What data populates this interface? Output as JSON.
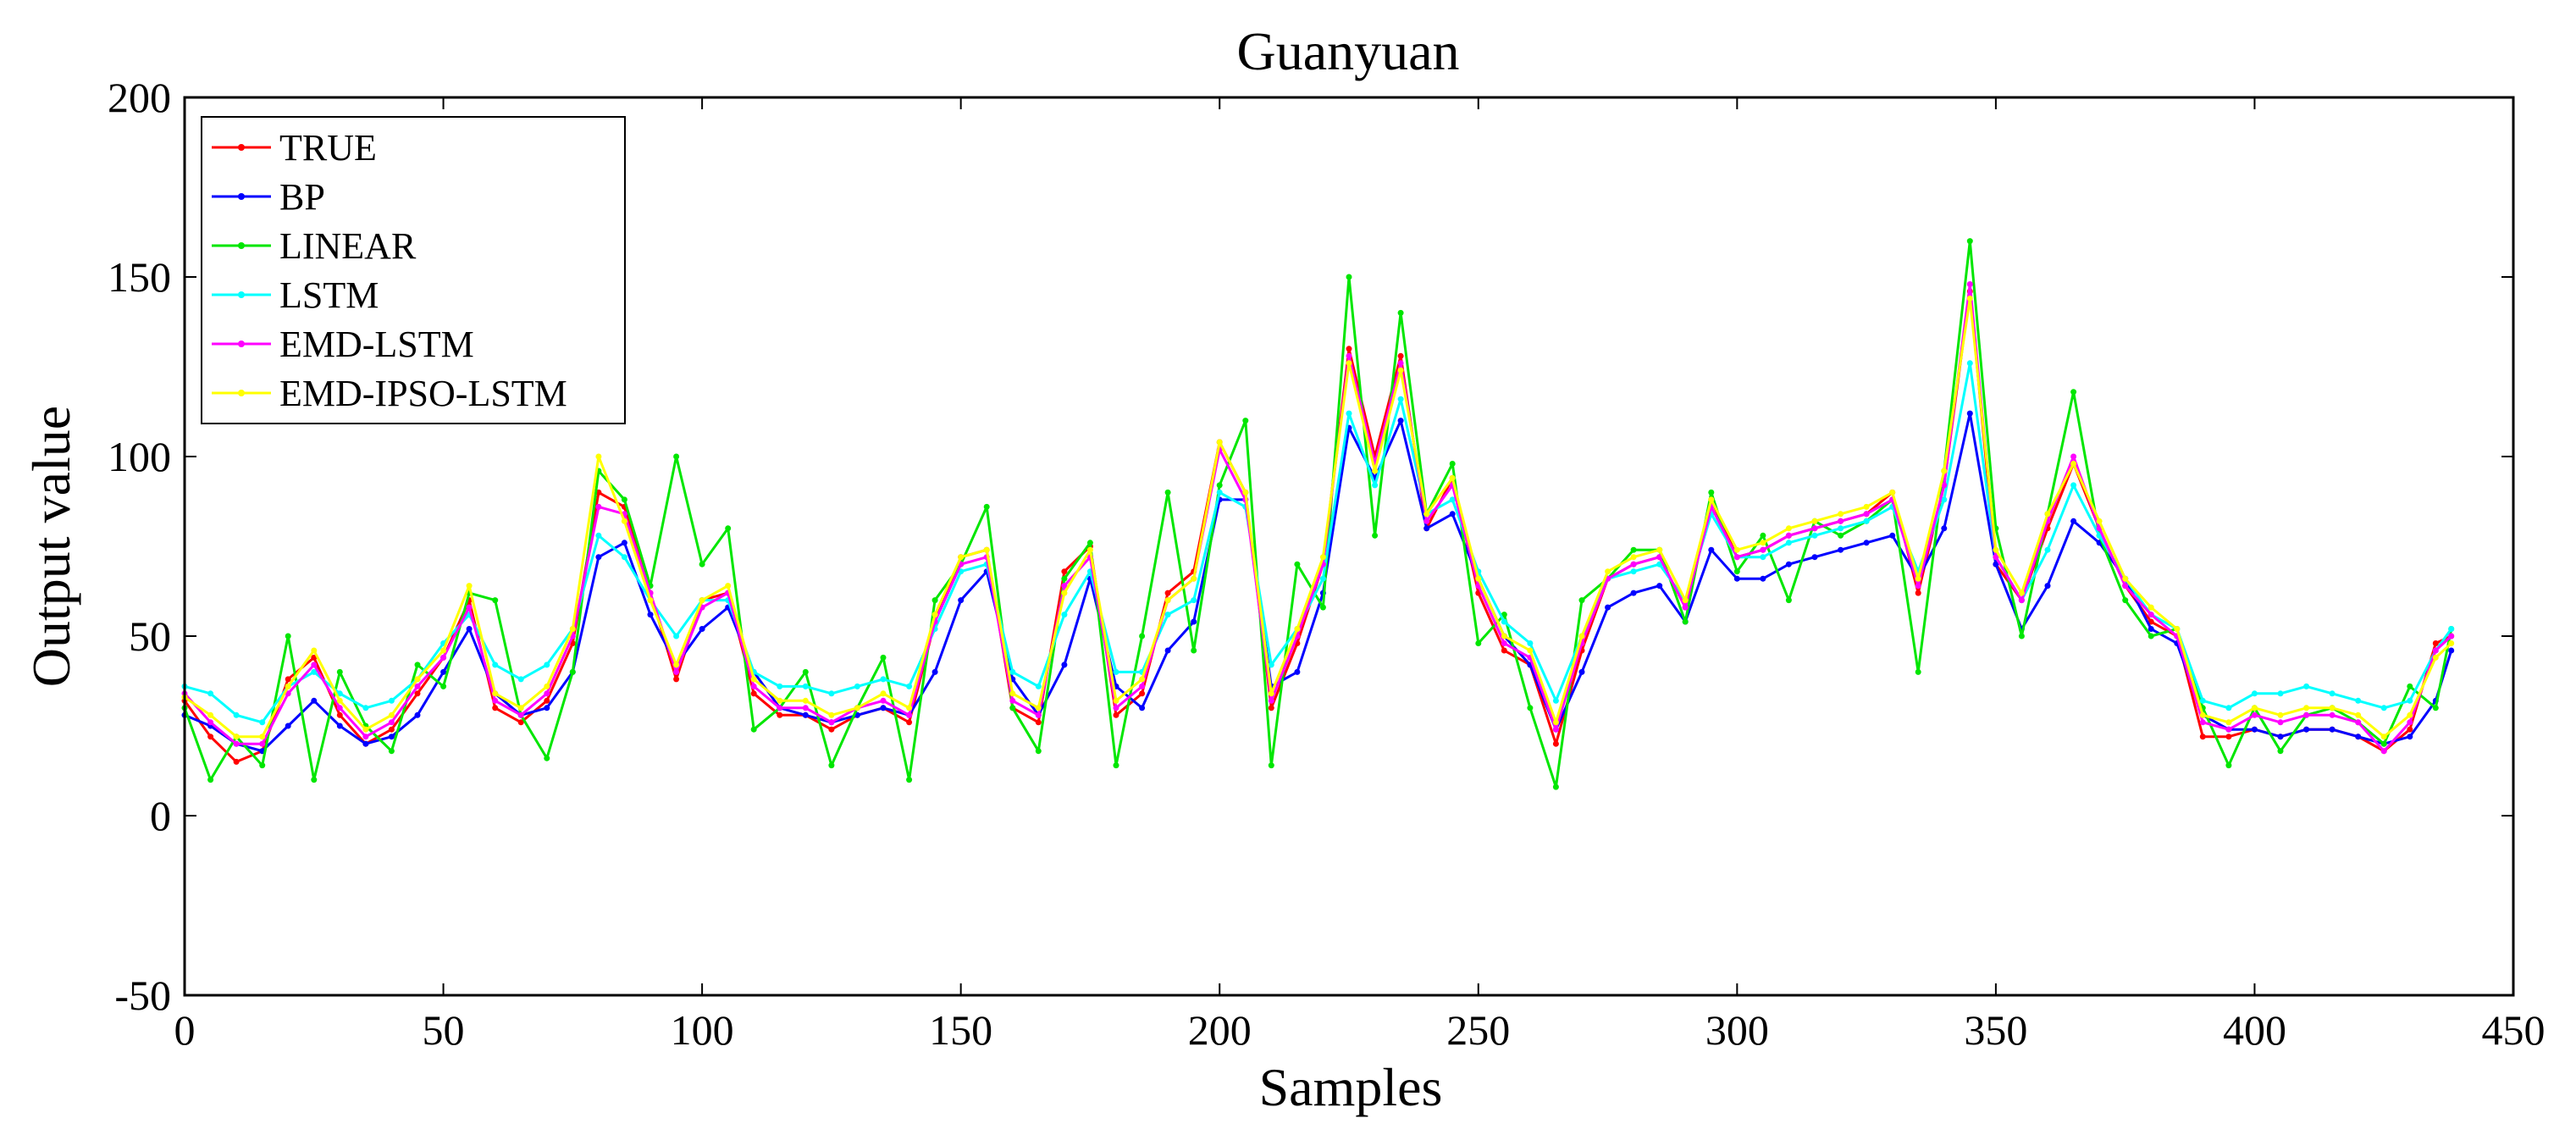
{
  "chart_data": {
    "type": "line",
    "title": "Guanyuan",
    "xlabel": "Samples",
    "ylabel": "Output  value",
    "xlim": [
      0,
      450
    ],
    "ylim": [
      -50,
      200
    ],
    "xticks": [
      0,
      50,
      100,
      150,
      200,
      250,
      300,
      350,
      400,
      450
    ],
    "yticks": [
      -50,
      0,
      50,
      100,
      150,
      200
    ],
    "xtick_labels": [
      "0",
      "50",
      "100",
      "150",
      "200",
      "250",
      "300",
      "350",
      "400",
      "450"
    ],
    "ytick_labels": [
      "-50",
      "0",
      "50",
      "100",
      "150",
      "200"
    ],
    "grid": false,
    "legend_position": "top-left",
    "x": [
      0,
      5,
      10,
      15,
      20,
      25,
      30,
      35,
      40,
      45,
      50,
      55,
      60,
      65,
      70,
      75,
      80,
      85,
      90,
      95,
      100,
      105,
      110,
      115,
      120,
      125,
      130,
      135,
      140,
      145,
      150,
      155,
      160,
      165,
      170,
      175,
      180,
      185,
      190,
      195,
      200,
      205,
      210,
      215,
      220,
      225,
      230,
      235,
      240,
      245,
      250,
      255,
      260,
      265,
      270,
      275,
      280,
      285,
      290,
      295,
      300,
      305,
      310,
      315,
      320,
      325,
      330,
      335,
      340,
      345,
      350,
      355,
      360,
      365,
      370,
      375,
      380,
      385,
      390,
      395,
      400,
      405,
      410,
      415,
      420,
      425,
      430,
      435,
      438
    ],
    "series": [
      {
        "name": "TRUE",
        "color": "#ff0000",
        "values": [
          32,
          22,
          15,
          18,
          38,
          44,
          28,
          20,
          24,
          34,
          44,
          60,
          30,
          26,
          32,
          48,
          90,
          86,
          62,
          38,
          60,
          62,
          34,
          28,
          28,
          24,
          28,
          30,
          26,
          54,
          72,
          74,
          30,
          26,
          68,
          75,
          28,
          34,
          62,
          68,
          104,
          90,
          30,
          48,
          70,
          130,
          100,
          128,
          80,
          94,
          62,
          46,
          42,
          20,
          46,
          66,
          70,
          72,
          58,
          88,
          72,
          74,
          78,
          80,
          82,
          84,
          90,
          62,
          92,
          146,
          70,
          60,
          80,
          98,
          80,
          64,
          54,
          50,
          22,
          22,
          24,
          22,
          24,
          24,
          22,
          18,
          24,
          48,
          50
        ]
      },
      {
        "name": "BP",
        "color": "#0000ff",
        "values": [
          28,
          25,
          20,
          18,
          25,
          32,
          25,
          20,
          22,
          28,
          40,
          52,
          34,
          28,
          30,
          40,
          72,
          76,
          56,
          42,
          52,
          58,
          40,
          30,
          28,
          26,
          28,
          30,
          28,
          40,
          60,
          68,
          38,
          28,
          42,
          66,
          36,
          30,
          46,
          54,
          88,
          88,
          36,
          40,
          62,
          108,
          94,
          110,
          80,
          84,
          66,
          50,
          42,
          24,
          40,
          58,
          62,
          64,
          54,
          74,
          66,
          66,
          70,
          72,
          74,
          76,
          78,
          66,
          80,
          112,
          70,
          52,
          64,
          82,
          76,
          66,
          52,
          48,
          28,
          24,
          24,
          22,
          24,
          24,
          22,
          20,
          22,
          32,
          46
        ]
      },
      {
        "name": "LINEAR",
        "color": "#00e600",
        "values": [
          30,
          10,
          22,
          14,
          50,
          10,
          40,
          25,
          18,
          42,
          36,
          62,
          60,
          28,
          16,
          40,
          96,
          88,
          64,
          100,
          70,
          80,
          24,
          30,
          40,
          14,
          30,
          44,
          10,
          60,
          70,
          86,
          30,
          18,
          66,
          76,
          14,
          50,
          90,
          46,
          92,
          110,
          14,
          70,
          58,
          150,
          78,
          140,
          84,
          98,
          48,
          56,
          30,
          8,
          60,
          66,
          74,
          74,
          54,
          90,
          68,
          78,
          60,
          82,
          78,
          82,
          88,
          40,
          96,
          160,
          80,
          50,
          84,
          118,
          78,
          60,
          50,
          52,
          30,
          14,
          30,
          18,
          28,
          30,
          26,
          20,
          36,
          30,
          52
        ]
      },
      {
        "name": "LSTM",
        "color": "#00ffff",
        "values": [
          36,
          34,
          28,
          26,
          36,
          40,
          34,
          30,
          32,
          38,
          48,
          56,
          42,
          38,
          42,
          52,
          78,
          72,
          60,
          50,
          60,
          60,
          40,
          36,
          36,
          34,
          36,
          38,
          36,
          52,
          68,
          70,
          40,
          36,
          56,
          68,
          40,
          40,
          56,
          60,
          90,
          86,
          42,
          52,
          66,
          112,
          92,
          116,
          84,
          88,
          68,
          54,
          48,
          32,
          50,
          66,
          68,
          70,
          60,
          84,
          72,
          72,
          76,
          78,
          80,
          82,
          86,
          68,
          88,
          126,
          72,
          60,
          74,
          92,
          78,
          66,
          56,
          52,
          32,
          30,
          34,
          34,
          36,
          34,
          32,
          30,
          32,
          46,
          52
        ]
      },
      {
        "name": "EMD-LSTM",
        "color": "#ff00ff",
        "values": [
          34,
          26,
          20,
          20,
          34,
          42,
          30,
          22,
          26,
          36,
          44,
          58,
          32,
          28,
          34,
          50,
          86,
          84,
          62,
          40,
          58,
          62,
          36,
          30,
          30,
          26,
          30,
          32,
          28,
          54,
          70,
          72,
          32,
          28,
          64,
          72,
          30,
          36,
          60,
          66,
          102,
          88,
          32,
          50,
          70,
          128,
          98,
          126,
          82,
          92,
          64,
          48,
          44,
          24,
          48,
          66,
          70,
          72,
          58,
          86,
          72,
          74,
          78,
          80,
          82,
          84,
          88,
          64,
          92,
          148,
          72,
          60,
          82,
          100,
          80,
          64,
          56,
          50,
          26,
          24,
          28,
          26,
          28,
          28,
          26,
          18,
          26,
          46,
          50
        ]
      },
      {
        "name": "EMD-IPSO-LSTM",
        "color": "#ffff00",
        "values": [
          33,
          28,
          22,
          22,
          36,
          46,
          32,
          24,
          28,
          38,
          46,
          64,
          34,
          30,
          36,
          52,
          100,
          82,
          60,
          42,
          60,
          64,
          38,
          32,
          32,
          28,
          30,
          34,
          30,
          56,
          72,
          74,
          34,
          30,
          62,
          74,
          32,
          38,
          60,
          66,
          104,
          90,
          34,
          52,
          72,
          126,
          96,
          124,
          84,
          94,
          66,
          50,
          46,
          26,
          50,
          68,
          72,
          74,
          60,
          88,
          74,
          76,
          80,
          82,
          84,
          86,
          90,
          66,
          96,
          144,
          74,
          62,
          84,
          98,
          82,
          66,
          58,
          52,
          28,
          26,
          30,
          28,
          30,
          30,
          28,
          22,
          28,
          44,
          48
        ]
      }
    ]
  }
}
